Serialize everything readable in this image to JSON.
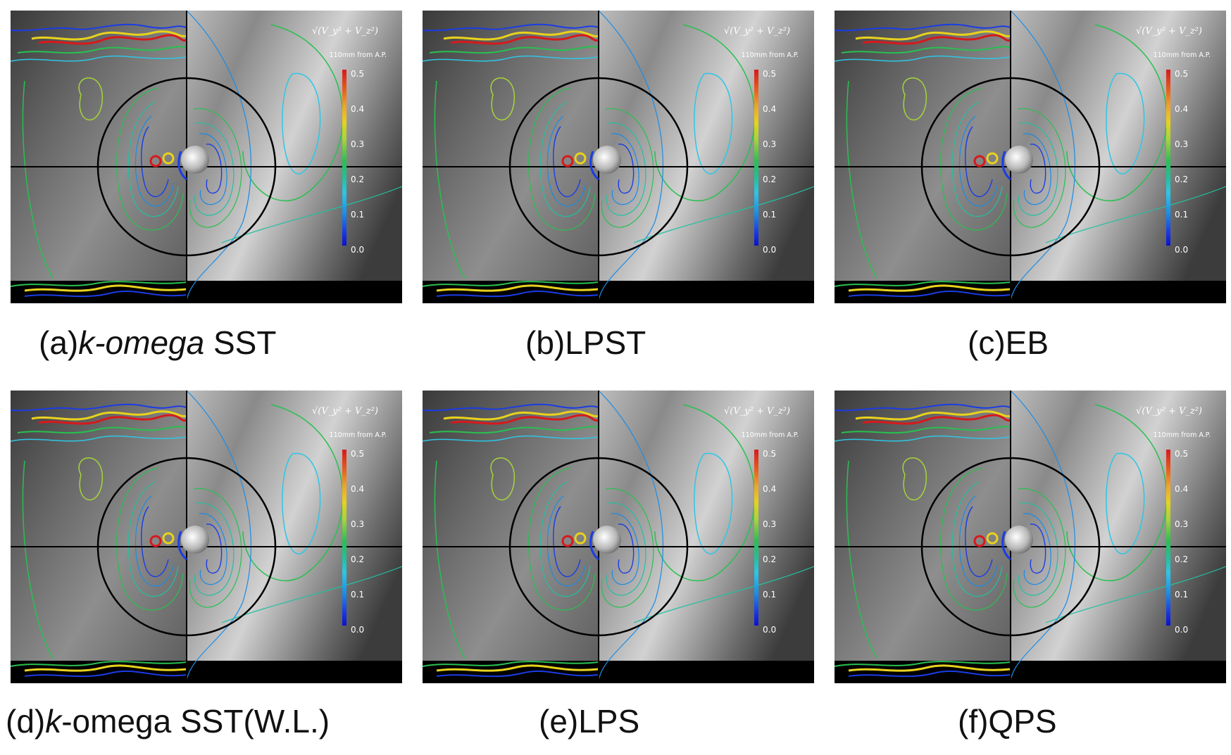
{
  "formula": "√(V_y² + V_z²)",
  "position_label": "110mm from A.P.",
  "colorbar_ticks": [
    "0.5",
    "0.4",
    "0.3",
    "0.2",
    "0.1",
    "0.0"
  ],
  "panels": [
    {
      "id": "a",
      "cap_prefix": "(a)",
      "cap_italic": "k-omega",
      "cap_suffix": " SST"
    },
    {
      "id": "b",
      "cap_prefix": "(b)LPST",
      "cap_italic": "",
      "cap_suffix": ""
    },
    {
      "id": "c",
      "cap_prefix": "(c)EB",
      "cap_italic": "",
      "cap_suffix": ""
    },
    {
      "id": "d",
      "cap_prefix": "(d)",
      "cap_italic": "k",
      "cap_suffix": "-omega SST(W.L.)"
    },
    {
      "id": "e",
      "cap_prefix": "(e)LPS",
      "cap_italic": "",
      "cap_suffix": ""
    },
    {
      "id": "f",
      "cap_prefix": "(f)QPS",
      "cap_italic": "",
      "cap_suffix": ""
    }
  ]
}
